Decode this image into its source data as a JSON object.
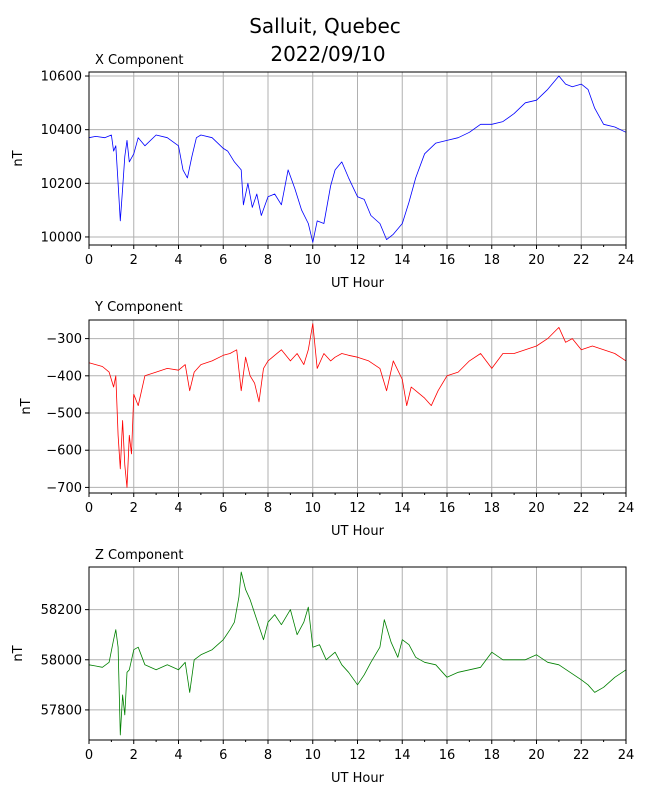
{
  "figure": {
    "title_line1": "Salluit, Quebec",
    "title_line2": "2022/09/10"
  },
  "chart_data": [
    {
      "type": "line",
      "title": "X Component",
      "xlabel": "UT Hour",
      "ylabel": "nT",
      "color": "#0000ff",
      "xlim": [
        0,
        24
      ],
      "ylim": [
        9970,
        10615
      ],
      "xticks": [
        0,
        2,
        4,
        6,
        8,
        10,
        12,
        14,
        16,
        18,
        20,
        22,
        24
      ],
      "yticks": [
        10000,
        10200,
        10400,
        10600
      ],
      "grid": true,
      "x": [
        0,
        0.3,
        0.7,
        1.0,
        1.1,
        1.2,
        1.3,
        1.4,
        1.5,
        1.6,
        1.7,
        1.8,
        2.0,
        2.2,
        2.5,
        3.0,
        3.5,
        4.0,
        4.2,
        4.4,
        4.6,
        4.8,
        5.0,
        5.5,
        6.0,
        6.2,
        6.5,
        6.8,
        6.9,
        7.1,
        7.3,
        7.5,
        7.7,
        8.0,
        8.3,
        8.6,
        8.9,
        9.2,
        9.5,
        9.8,
        10.0,
        10.2,
        10.5,
        10.8,
        11.0,
        11.3,
        11.6,
        12.0,
        12.3,
        12.6,
        13.0,
        13.3,
        13.6,
        14.0,
        14.3,
        14.6,
        15.0,
        15.5,
        16.0,
        16.5,
        17.0,
        17.5,
        18.0,
        18.5,
        19.0,
        19.5,
        20.0,
        20.5,
        21.0,
        21.3,
        21.6,
        22.0,
        22.3,
        22.6,
        23.0,
        23.5,
        24.0
      ],
      "values": [
        10370,
        10375,
        10370,
        10380,
        10320,
        10340,
        10200,
        10060,
        10180,
        10300,
        10360,
        10280,
        10310,
        10370,
        10340,
        10380,
        10370,
        10340,
        10250,
        10220,
        10300,
        10370,
        10380,
        10370,
        10330,
        10320,
        10280,
        10250,
        10120,
        10200,
        10110,
        10160,
        10080,
        10150,
        10160,
        10120,
        10250,
        10180,
        10100,
        10050,
        9980,
        10060,
        10050,
        10190,
        10250,
        10280,
        10220,
        10150,
        10140,
        10080,
        10050,
        9990,
        10010,
        10050,
        10130,
        10220,
        10310,
        10350,
        10360,
        10370,
        10390,
        10420,
        10420,
        10430,
        10460,
        10500,
        10510,
        10550,
        10600,
        10570,
        10560,
        10570,
        10550,
        10480,
        10420,
        10410,
        10390
      ]
    },
    {
      "type": "line",
      "title": "Y Component",
      "xlabel": "UT Hour",
      "ylabel": "nT",
      "color": "#ff0000",
      "xlim": [
        0,
        24
      ],
      "ylim": [
        -715,
        -250
      ],
      "xticks": [
        0,
        2,
        4,
        6,
        8,
        10,
        12,
        14,
        16,
        18,
        20,
        22,
        24
      ],
      "yticks": [
        -700,
        -600,
        -500,
        -400,
        -300
      ],
      "grid": true,
      "x": [
        0,
        0.3,
        0.6,
        0.9,
        1.1,
        1.2,
        1.3,
        1.4,
        1.5,
        1.6,
        1.7,
        1.8,
        1.9,
        2.0,
        2.2,
        2.5,
        3.0,
        3.5,
        4.0,
        4.3,
        4.5,
        4.7,
        5.0,
        5.5,
        6.0,
        6.3,
        6.6,
        6.8,
        7.0,
        7.2,
        7.4,
        7.6,
        7.8,
        8.0,
        8.3,
        8.6,
        9.0,
        9.3,
        9.6,
        9.8,
        10.0,
        10.2,
        10.5,
        10.8,
        11.0,
        11.3,
        11.6,
        12.0,
        12.5,
        13.0,
        13.3,
        13.6,
        14.0,
        14.2,
        14.4,
        14.6,
        15.0,
        15.3,
        15.6,
        16.0,
        16.5,
        17.0,
        17.5,
        18.0,
        18.5,
        19.0,
        19.5,
        20.0,
        20.5,
        21.0,
        21.3,
        21.6,
        22.0,
        22.5,
        23.0,
        23.5,
        24.0
      ],
      "values": [
        -365,
        -370,
        -375,
        -390,
        -430,
        -400,
        -560,
        -650,
        -520,
        -640,
        -700,
        -560,
        -610,
        -450,
        -480,
        -400,
        -390,
        -380,
        -385,
        -370,
        -440,
        -390,
        -370,
        -360,
        -345,
        -340,
        -330,
        -440,
        -350,
        -400,
        -420,
        -470,
        -380,
        -360,
        -345,
        -330,
        -360,
        -340,
        -370,
        -330,
        -260,
        -380,
        -340,
        -360,
        -350,
        -340,
        -345,
        -350,
        -360,
        -380,
        -440,
        -360,
        -410,
        -480,
        -430,
        -440,
        -460,
        -480,
        -440,
        -400,
        -390,
        -360,
        -340,
        -380,
        -340,
        -340,
        -330,
        -320,
        -300,
        -270,
        -310,
        -300,
        -330,
        -320,
        -330,
        -340,
        -360
      ]
    },
    {
      "type": "line",
      "title": "Z Component",
      "xlabel": "UT Hour",
      "ylabel": "nT",
      "color": "#008000",
      "xlim": [
        0,
        24
      ],
      "ylim": [
        57680,
        58370
      ],
      "xticks": [
        0,
        2,
        4,
        6,
        8,
        10,
        12,
        14,
        16,
        18,
        20,
        22,
        24
      ],
      "yticks": [
        57800,
        58000,
        58200
      ],
      "grid": true,
      "x": [
        0,
        0.3,
        0.6,
        0.9,
        1.1,
        1.2,
        1.3,
        1.4,
        1.5,
        1.6,
        1.7,
        1.8,
        2.0,
        2.2,
        2.5,
        3.0,
        3.5,
        4.0,
        4.3,
        4.5,
        4.7,
        5.0,
        5.5,
        6.0,
        6.3,
        6.5,
        6.7,
        6.8,
        7.0,
        7.2,
        7.5,
        7.8,
        8.0,
        8.3,
        8.6,
        9.0,
        9.3,
        9.6,
        9.8,
        10.0,
        10.3,
        10.6,
        11.0,
        11.3,
        11.6,
        12.0,
        12.3,
        12.6,
        13.0,
        13.2,
        13.5,
        13.8,
        14.0,
        14.3,
        14.6,
        15.0,
        15.5,
        16.0,
        16.5,
        17.0,
        17.5,
        18.0,
        18.5,
        19.0,
        19.5,
        20.0,
        20.5,
        21.0,
        21.5,
        22.0,
        22.3,
        22.6,
        23.0,
        23.5,
        24.0
      ],
      "values": [
        57980,
        57975,
        57970,
        57990,
        58080,
        58120,
        58050,
        57700,
        57860,
        57780,
        57950,
        57960,
        58040,
        58050,
        57980,
        57960,
        57980,
        57960,
        57990,
        57870,
        58000,
        58020,
        58040,
        58080,
        58120,
        58150,
        58250,
        58350,
        58280,
        58240,
        58160,
        58080,
        58150,
        58180,
        58140,
        58200,
        58100,
        58150,
        58210,
        58050,
        58060,
        58000,
        58030,
        57980,
        57950,
        57900,
        57940,
        57990,
        58050,
        58160,
        58070,
        58010,
        58080,
        58060,
        58010,
        57990,
        57980,
        57930,
        57950,
        57960,
        57970,
        58030,
        58000,
        58000,
        58000,
        58020,
        57990,
        57980,
        57950,
        57920,
        57900,
        57870,
        57890,
        57930,
        57960
      ]
    }
  ]
}
